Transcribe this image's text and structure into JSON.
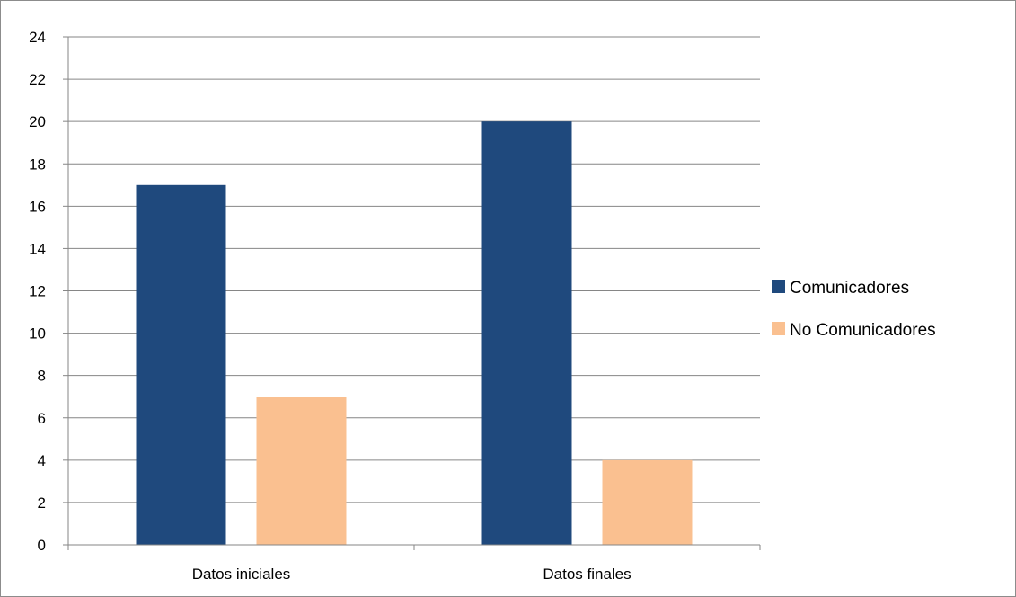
{
  "chart_data": {
    "type": "bar",
    "title": "",
    "xlabel": "",
    "ylabel": "",
    "categories": [
      "Datos iniciales",
      "Datos finales"
    ],
    "series": [
      {
        "name": "Comunicadores",
        "values": [
          17,
          20
        ],
        "color": "#1f497d"
      },
      {
        "name": "No Comunicadores",
        "values": [
          7,
          4
        ],
        "color": "#fac090"
      }
    ],
    "ylim": [
      0,
      24
    ],
    "yticks": [
      "0",
      "2",
      "4",
      "6",
      "8",
      "10",
      "12",
      "14",
      "16",
      "18",
      "20",
      "22",
      "24"
    ],
    "grid": true,
    "legend_position": "right"
  }
}
